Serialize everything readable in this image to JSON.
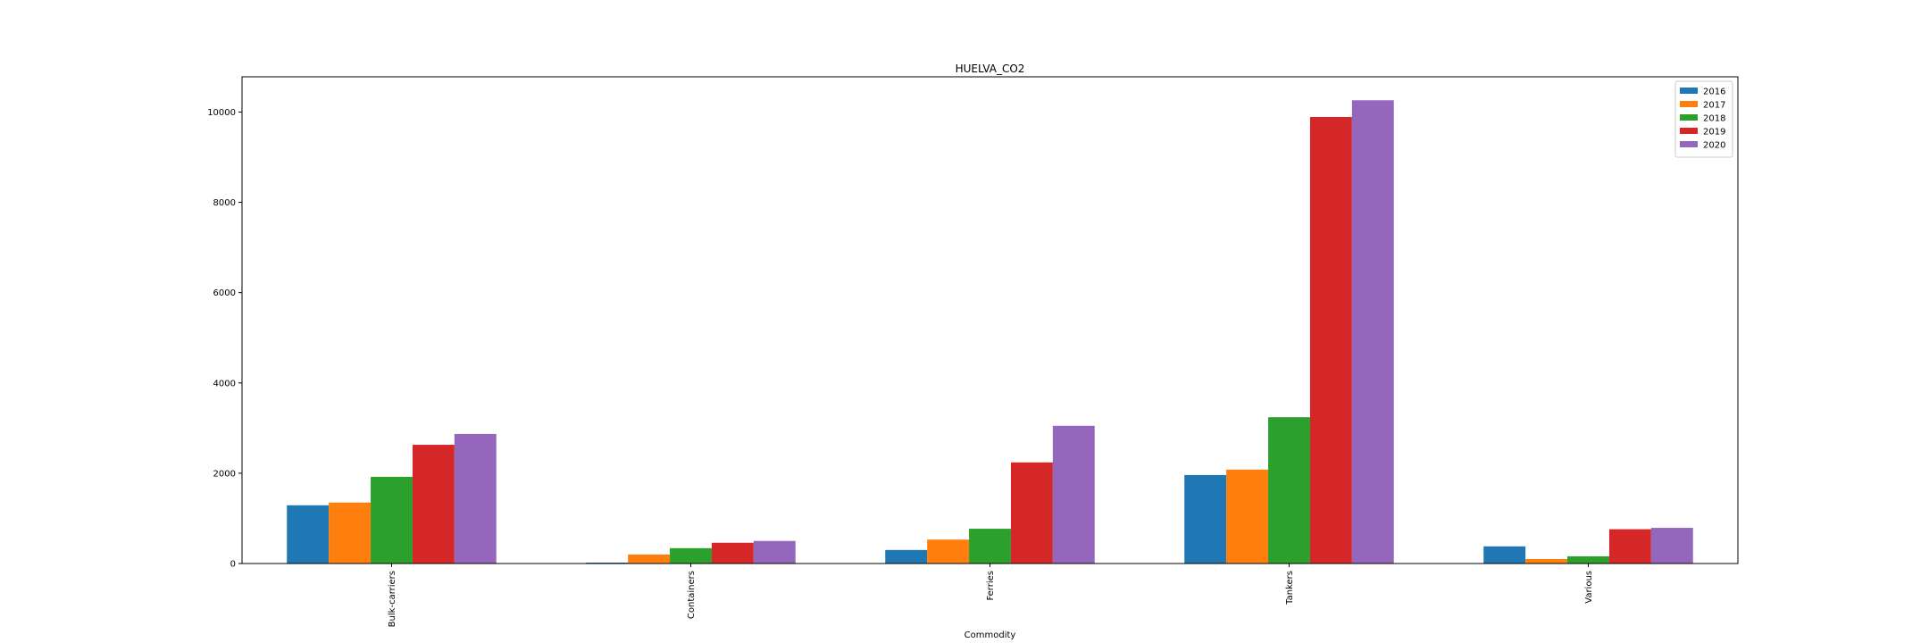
{
  "chart_data": {
    "type": "bar",
    "title": "HUELVA_CO2",
    "xlabel": "Commodity",
    "ylabel": "",
    "categories": [
      "Bulk-carriers",
      "Containers",
      "Ferries",
      "Tankers",
      "Various"
    ],
    "series": [
      {
        "name": "2016",
        "color": "#1f77b4",
        "values": [
          1290,
          20,
          300,
          1960,
          380
        ]
      },
      {
        "name": "2017",
        "color": "#ff7f0e",
        "values": [
          1350,
          200,
          530,
          2080,
          100
        ]
      },
      {
        "name": "2018",
        "color": "#2ca02c",
        "values": [
          1920,
          340,
          770,
          3240,
          160
        ]
      },
      {
        "name": "2019",
        "color": "#d62728",
        "values": [
          2630,
          460,
          2240,
          9890,
          760
        ]
      },
      {
        "name": "2020",
        "color": "#9467bd",
        "values": [
          2870,
          500,
          3050,
          10260,
          790
        ]
      }
    ],
    "ylim": [
      0,
      10780
    ],
    "yticks": [
      "0",
      "2000",
      "4000",
      "6000",
      "8000",
      "10000"
    ],
    "ytick_values": [
      0,
      2000,
      4000,
      6000,
      8000,
      10000
    ],
    "legend_position": "top-right",
    "grid": false
  }
}
